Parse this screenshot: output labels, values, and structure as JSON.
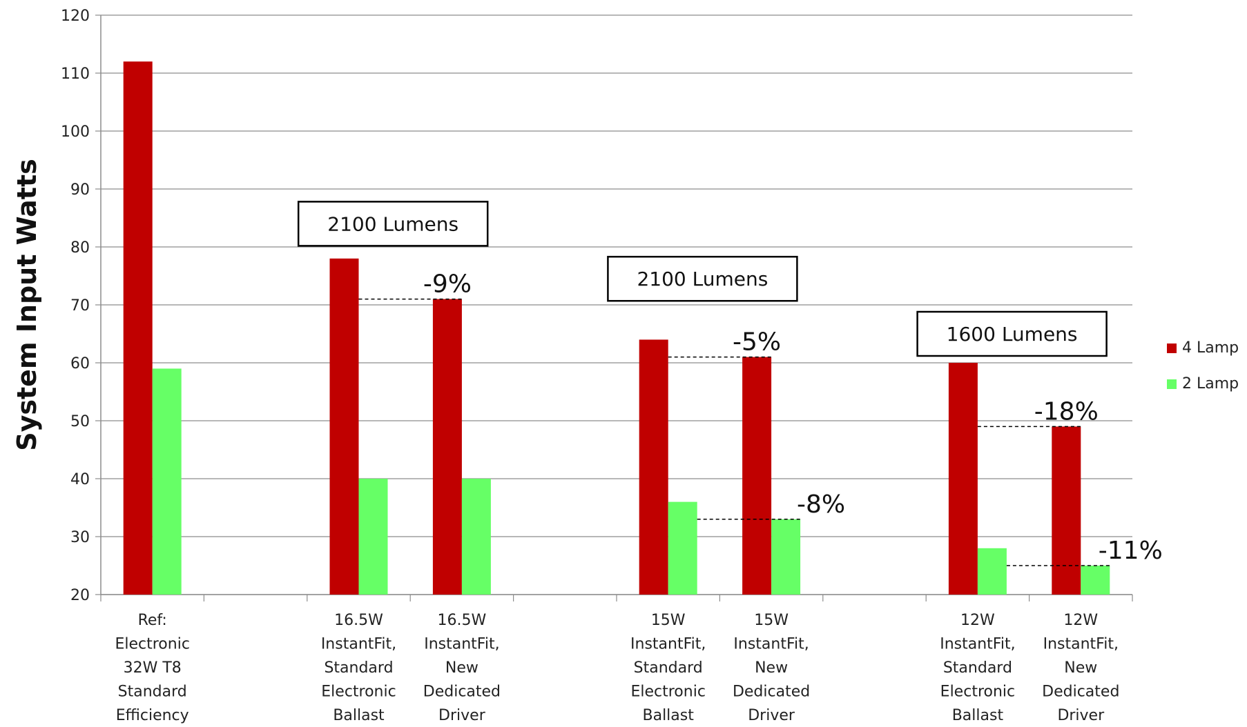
{
  "chart_data": {
    "type": "bar",
    "ylabel": "System Input Watts",
    "xlabel": "",
    "ylim": [
      20,
      120
    ],
    "yticks": [
      20,
      30,
      40,
      50,
      60,
      70,
      80,
      90,
      100,
      110,
      120
    ],
    "grid": true,
    "legend_position": "right",
    "slots": 10,
    "categories": [
      {
        "slot": 0,
        "lines": [
          "Ref:",
          "Electronic",
          "32W T8",
          "Standard",
          "Efficiency"
        ]
      },
      {
        "slot": 2,
        "lines": [
          "16.5W",
          "InstantFit,",
          "Standard",
          "Electronic",
          "Ballast"
        ]
      },
      {
        "slot": 3,
        "lines": [
          "16.5W",
          "InstantFit,",
          "New",
          "Dedicated",
          "Driver"
        ]
      },
      {
        "slot": 5,
        "lines": [
          "15W",
          "InstantFit,",
          "Standard",
          "Electronic",
          "Ballast"
        ]
      },
      {
        "slot": 6,
        "lines": [
          "15W",
          "InstantFit,",
          "New",
          "Dedicated",
          "Driver"
        ]
      },
      {
        "slot": 8,
        "lines": [
          "12W",
          "InstantFit,",
          "Standard",
          "Electronic",
          "Ballast"
        ]
      },
      {
        "slot": 9,
        "lines": [
          "12W",
          "InstantFit,",
          "New",
          "Dedicated",
          "Driver"
        ]
      }
    ],
    "series": [
      {
        "name": "4 Lamp",
        "color": "#c00000",
        "values": [
          112,
          78,
          71,
          64,
          61,
          60,
          49
        ]
      },
      {
        "name": "2 Lamp",
        "color": "#66ff66",
        "values": [
          59,
          40,
          40,
          36,
          33,
          28,
          25
        ]
      }
    ],
    "annotations": [
      {
        "text": "-9%",
        "series": 0,
        "from": 1,
        "to": 2
      },
      {
        "text": "-5%",
        "series": 0,
        "from": 3,
        "to": 4
      },
      {
        "text": "-8%",
        "series": 1,
        "from": 3,
        "to": 4
      },
      {
        "text": "-18%",
        "series": 0,
        "from": 5,
        "to": 6
      },
      {
        "text": "-11%",
        "series": 1,
        "from": 5,
        "to": 6
      }
    ],
    "lumen_boxes": [
      {
        "text": "2100 Lumens",
        "group": [
          1,
          2
        ],
        "value": 84
      },
      {
        "text": "2100 Lumens",
        "group": [
          3,
          4
        ],
        "value": 74.5
      },
      {
        "text": "1600 Lumens",
        "group": [
          5,
          6
        ],
        "value": 65
      }
    ]
  }
}
